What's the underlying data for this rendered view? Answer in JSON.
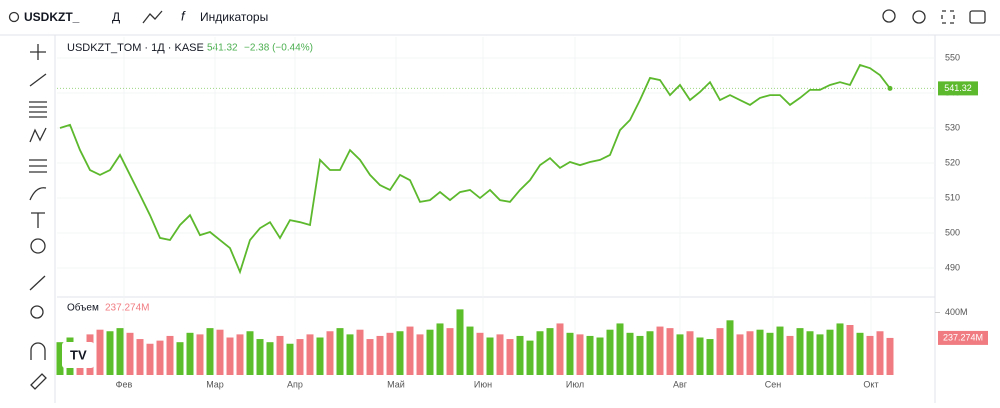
{
  "toolbar": {
    "symbol": "USDKZT_",
    "interval": "Д",
    "indicators": "Индикаторы"
  },
  "header": {
    "title": "USDKZT_TOM · 1Д · KASE",
    "change": "−2.38 (−0.44%)",
    "volume_title": "Объем"
  },
  "chart_data": {
    "type": "line",
    "color": "#5cb82c",
    "up_color": "#5cbe2a",
    "down_color": "#f07c82",
    "values": [
      530.0,
      530.9,
      523.7,
      518,
      516.6,
      518,
      522.3,
      516.6,
      510.9,
      505.1,
      498.6,
      498,
      502.3,
      505.1,
      499.4,
      500.3,
      498,
      495.7,
      488.9,
      498,
      501.4,
      503.1,
      498.6,
      503.7,
      503.1,
      502.3,
      520.9,
      518,
      518,
      523.7,
      520.9,
      516.6,
      513.7,
      512.3,
      516.6,
      515.1,
      508.9,
      509.4,
      511.7,
      509.4,
      511.7,
      512.3,
      510,
      512.3,
      509.4,
      508.9,
      512.3,
      515.1,
      519.4,
      521.4,
      518.6,
      520.3,
      519.4,
      520.3,
      520.9,
      522.3,
      529.4,
      532.3,
      538,
      544.3,
      543.7,
      539.4,
      542.3,
      538,
      540.3,
      543.1,
      538,
      539.4,
      538,
      536.6,
      538.6,
      539.4,
      539.4,
      536.6,
      538.6,
      540.9,
      540.9,
      542.3,
      543.1,
      542.3,
      548,
      547.1,
      545.1,
      541.32
    ],
    "volume": [
      210,
      240,
      190,
      260,
      290,
      280,
      300,
      270,
      230,
      200,
      220,
      250,
      210,
      270,
      260,
      300,
      290,
      240,
      260,
      280,
      230,
      210,
      250,
      200,
      230,
      260,
      240,
      280,
      300,
      260,
      290,
      230,
      250,
      270,
      280,
      310,
      260,
      290,
      330,
      300,
      420,
      310,
      270,
      240,
      260,
      230,
      250,
      220,
      280,
      300,
      330,
      270,
      260,
      250,
      240,
      290,
      330,
      270,
      250,
      280,
      310,
      300,
      260,
      280,
      240,
      230,
      300,
      350,
      260,
      280,
      290,
      270,
      310,
      250,
      300,
      280,
      260,
      290,
      330,
      320,
      270,
      250,
      280,
      237.274
    ],
    "volume_label": "237.274M",
    "ylim": [
      482.3,
      556
    ],
    "yticks": [
      490,
      500,
      510,
      520,
      530,
      540,
      550
    ],
    "vlim": [
      0,
      480
    ],
    "vticks": [
      {
        "value": 400,
        "label": "400M"
      }
    ],
    "xticks": [
      {
        "value": 6.4,
        "label": "Фев"
      },
      {
        "value": 15.5,
        "label": "Мар"
      },
      {
        "value": 23.5,
        "label": "Апр"
      },
      {
        "value": 33.6,
        "label": "Май"
      },
      {
        "value": 42.3,
        "label": "Июн"
      },
      {
        "value": 51.5,
        "label": "Июл"
      },
      {
        "value": 62,
        "label": "Авг"
      },
      {
        "value": 71.3,
        "label": "Сен"
      },
      {
        "value": 81.1,
        "label": "Окт"
      }
    ]
  }
}
